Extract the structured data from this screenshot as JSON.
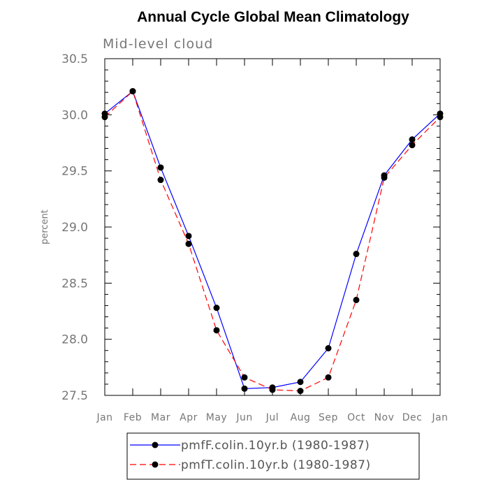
{
  "chart_data": {
    "type": "line",
    "title": "Annual Cycle Global Mean Climatology",
    "subtitle": "Mid-level cloud",
    "xlabel": "",
    "ylabel": "percent",
    "categories": [
      "Jan",
      "Feb",
      "Mar",
      "Apr",
      "May",
      "Jun",
      "Jul",
      "Aug",
      "Sep",
      "Oct",
      "Nov",
      "Dec",
      "Jan"
    ],
    "yticks": [
      "27.5",
      "28.0",
      "28.5",
      "29.0",
      "29.5",
      "30.0",
      "30.5"
    ],
    "ylim": [
      27.5,
      30.5
    ],
    "grid": false,
    "legend_position": "bottom",
    "series": [
      {
        "name": "pmfF.colin.10yr.b (1980-1987)",
        "color": "#0000ff",
        "dash": "solid",
        "marker": "circle",
        "values": [
          30.01,
          30.21,
          29.53,
          28.92,
          28.28,
          27.56,
          27.57,
          27.62,
          27.92,
          28.76,
          29.46,
          29.78,
          30.01
        ]
      },
      {
        "name": "pmfT.colin.10yr.b (1980-1987)",
        "color": "#ff0000",
        "dash": "dashed",
        "marker": "circle",
        "values": [
          29.98,
          30.21,
          29.42,
          28.85,
          28.08,
          27.66,
          27.55,
          27.54,
          27.66,
          28.35,
          29.44,
          29.73,
          29.98
        ]
      }
    ]
  }
}
